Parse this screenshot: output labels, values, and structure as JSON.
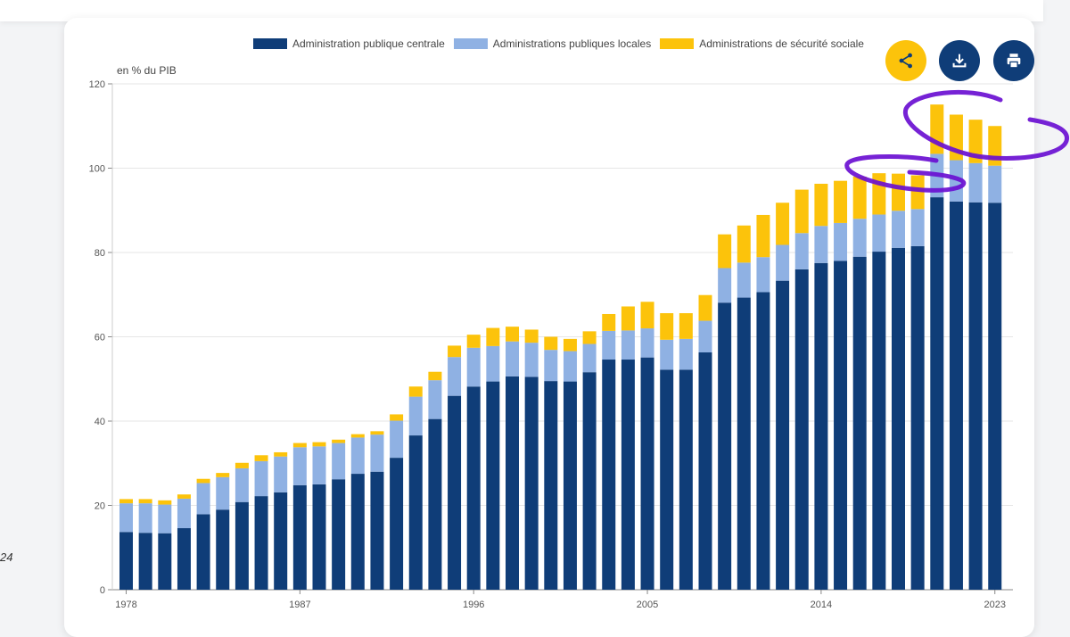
{
  "side_text": "24",
  "actions": {
    "share_icon": "share-icon",
    "download_icon": "download-icon",
    "print_icon": "print-icon"
  },
  "colors": {
    "central": "#0f3d78",
    "local": "#8fb1e3",
    "social": "#fcc30b",
    "share_bg": "#fcc30b",
    "action_bg": "#0f3d78",
    "annotation": "#6a0fd1"
  },
  "chart_data": {
    "type": "bar",
    "stacked": true,
    "ylabel": "en % du PIB",
    "ylim": [
      0,
      120
    ],
    "yticks": [
      0,
      20,
      40,
      60,
      80,
      100,
      120
    ],
    "xtick_labels": [
      "1978",
      "1987",
      "1996",
      "2005",
      "2014",
      "2023"
    ],
    "grid": true,
    "legend_position": "top",
    "categories": [
      "1978",
      "1979",
      "1980",
      "1981",
      "1982",
      "1983",
      "1984",
      "1985",
      "1986",
      "1987",
      "1988",
      "1989",
      "1990",
      "1991",
      "1992",
      "1993",
      "1994",
      "1995",
      "1996",
      "1997",
      "1998",
      "1999",
      "2000",
      "2001",
      "2002",
      "2003",
      "2004",
      "2005",
      "2006",
      "2007",
      "2008",
      "2009",
      "2010",
      "2011",
      "2012",
      "2013",
      "2014",
      "2015",
      "2016",
      "2017",
      "2018",
      "2019",
      "2020",
      "2021",
      "2022",
      "2023"
    ],
    "series": [
      {
        "name": "Administration publique centrale",
        "values": [
          13.7,
          13.5,
          13.4,
          14.6,
          17.9,
          19.0,
          20.8,
          22.2,
          23.1,
          24.8,
          25.0,
          26.2,
          27.5,
          28.0,
          31.3,
          36.6,
          40.5,
          46.0,
          48.2,
          49.4,
          50.6,
          50.5,
          49.5,
          49.4,
          51.6,
          54.6,
          54.6,
          55.1,
          52.2,
          52.2,
          56.3,
          68.1,
          69.3,
          70.6,
          73.3,
          76.0,
          77.5,
          78.0,
          79.0,
          80.2,
          81.1,
          81.5,
          93.1,
          92.1,
          91.9,
          91.8
        ]
      },
      {
        "name": "Administrations publiques locales",
        "values": [
          6.8,
          7.0,
          6.8,
          7.0,
          7.4,
          7.7,
          8.0,
          8.3,
          8.5,
          9.0,
          9.0,
          8.6,
          8.6,
          8.8,
          8.8,
          9.2,
          9.2,
          9.2,
          9.2,
          8.4,
          8.3,
          8.1,
          7.4,
          7.2,
          6.7,
          6.8,
          6.9,
          6.9,
          7.1,
          7.3,
          7.5,
          8.2,
          8.3,
          8.3,
          8.5,
          8.6,
          8.8,
          9.0,
          9.0,
          8.8,
          8.8,
          8.8,
          10.3,
          9.8,
          9.3,
          8.8
        ]
      },
      {
        "name": "Administrations de sécurité sociale",
        "values": [
          1.0,
          1.0,
          1.0,
          1.0,
          1.0,
          1.0,
          1.3,
          1.4,
          1.0,
          1.0,
          1.0,
          0.8,
          0.8,
          0.8,
          1.5,
          2.4,
          2.0,
          2.7,
          3.1,
          4.3,
          3.5,
          3.1,
          3.1,
          2.9,
          3.0,
          4.0,
          5.7,
          6.3,
          6.3,
          6.1,
          6.1,
          8.0,
          8.8,
          10.0,
          10.0,
          10.3,
          10.0,
          10.0,
          10.0,
          9.8,
          8.8,
          8.0,
          11.7,
          10.8,
          10.3,
          9.4
        ]
      }
    ]
  }
}
